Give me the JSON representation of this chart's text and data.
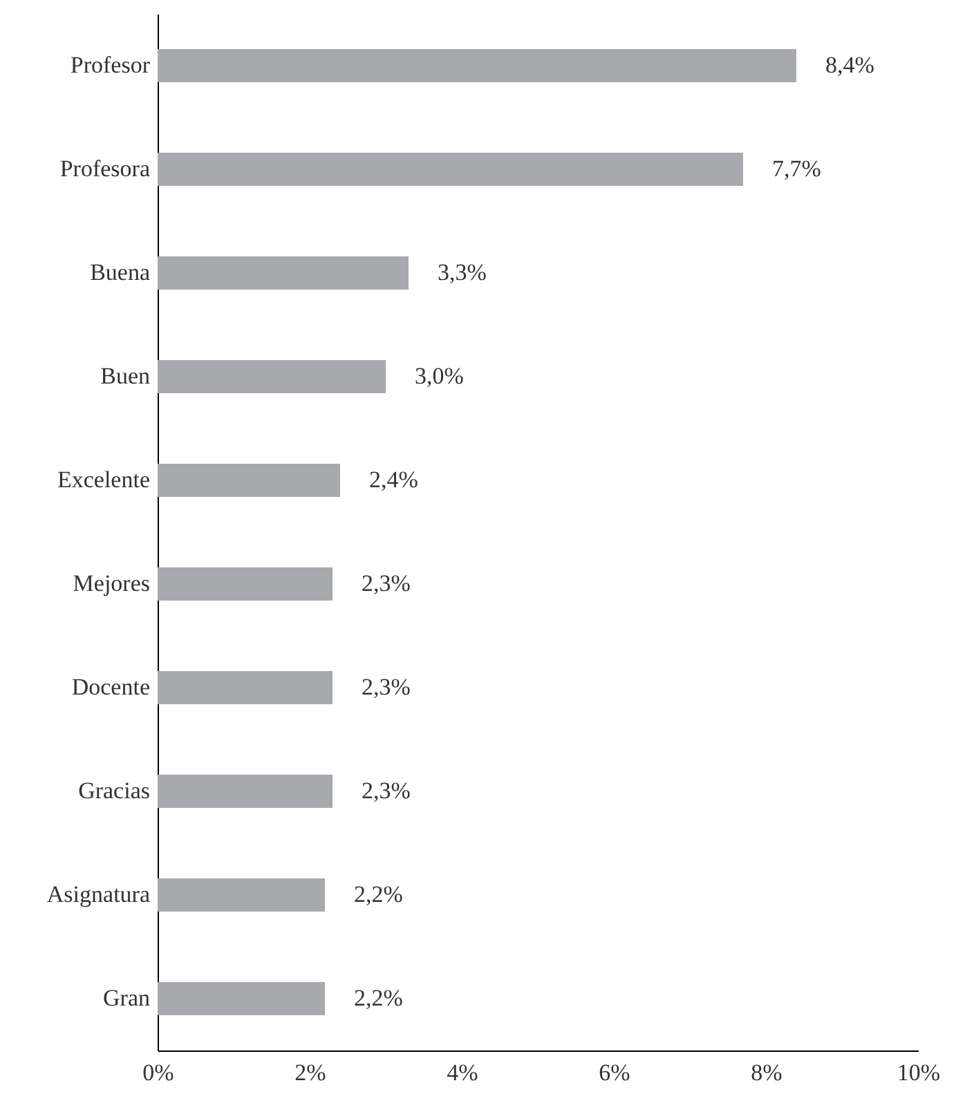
{
  "chart_data": {
    "type": "bar",
    "orientation": "horizontal",
    "categories": [
      "Profesor",
      "Profesora",
      "Buena",
      "Buen",
      "Excelente",
      "Mejores",
      "Docente",
      "Gracias",
      "Asignatura",
      "Gran"
    ],
    "values": [
      8.4,
      7.7,
      3.3,
      3.0,
      2.4,
      2.3,
      2.3,
      2.3,
      2.2,
      2.2
    ],
    "value_labels": [
      "8,4%",
      "7,7%",
      "3,3%",
      "3,0%",
      "2,4%",
      "2,3%",
      "2,3%",
      "2,3%",
      "2,2%",
      "2,2%"
    ],
    "color": "#a7a9ac",
    "xlim": [
      0,
      10
    ],
    "xticks": [
      {
        "value": 0,
        "label": "0%"
      },
      {
        "value": 2,
        "label": "2%"
      },
      {
        "value": 4,
        "label": "4%"
      },
      {
        "value": 6,
        "label": "6%"
      },
      {
        "value": 8,
        "label": "8%"
      },
      {
        "value": 10,
        "label": "10%"
      }
    ],
    "grid": false
  }
}
